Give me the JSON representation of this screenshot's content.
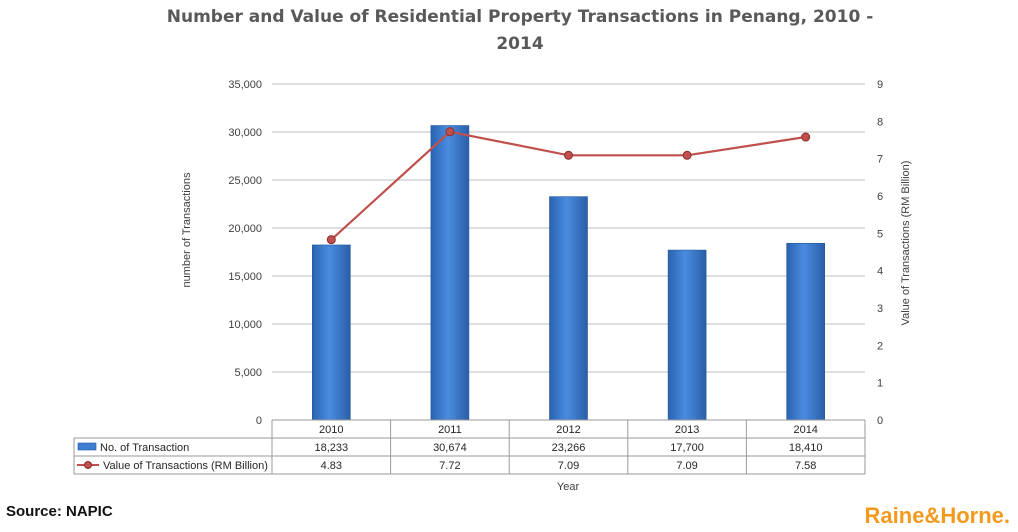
{
  "chart_data": {
    "type": "bar",
    "title_line1": "Number and Value of Residential Property Transactions in Penang, 2010 -",
    "title_line2": "2014",
    "xlabel": "Year",
    "ylabel": "number of Transactions",
    "y2label": "Value of Transactions (RM Billion)",
    "categories": [
      "2010",
      "2011",
      "2012",
      "2013",
      "2014"
    ],
    "ylim": [
      0,
      35000
    ],
    "yticks": [
      "0",
      "5,000",
      "10,000",
      "15,000",
      "20,000",
      "25,000",
      "30,000",
      "35,000"
    ],
    "y2lim": [
      0,
      9
    ],
    "y2ticks": [
      "0",
      "1",
      "2",
      "3",
      "4",
      "5",
      "6",
      "7",
      "8",
      "9"
    ],
    "series": [
      {
        "name": "No. of Transaction",
        "type": "bar",
        "axis": "left",
        "color": "#3f7fd3",
        "values": [
          18233,
          30674,
          23266,
          17700,
          18410
        ],
        "labels": [
          "18,233",
          "30,674",
          "23,266",
          "17,700",
          "18,410"
        ]
      },
      {
        "name": "Value of Transactions (RM Billion)",
        "type": "line",
        "axis": "right",
        "color": "#c0504d",
        "values": [
          4.83,
          7.72,
          7.09,
          7.09,
          7.58
        ],
        "labels": [
          "4.83",
          "7.72",
          "7.09",
          "7.09",
          "7.58"
        ]
      }
    ],
    "grid": true,
    "legend": "data-table"
  },
  "footer": {
    "source": "Source: NAPIC",
    "brand": "Raine&Horne."
  }
}
